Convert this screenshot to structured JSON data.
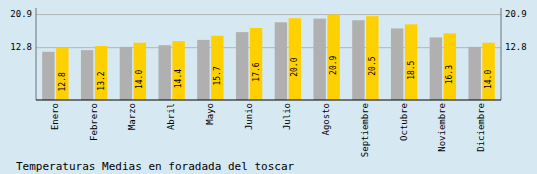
{
  "chart_data": {
    "type": "bar",
    "title": "Temperaturas Medias en foradada del toscar",
    "categories": [
      "Enero",
      "Febrero",
      "Marzo",
      "Abril",
      "Mayo",
      "Junio",
      "Julio",
      "Agosto",
      "Septiembre",
      "Octubre",
      "Noviembre",
      "Diciembre"
    ],
    "series": [
      {
        "color": "#B0B0B0",
        "values": [
          11.8,
          12.2,
          13.0,
          13.4,
          14.7,
          16.6,
          19.0,
          19.9,
          19.5,
          17.5,
          15.3,
          13.0
        ]
      },
      {
        "color": "#FFD000",
        "values": [
          12.8,
          13.2,
          14.0,
          14.4,
          15.7,
          17.6,
          20.0,
          20.9,
          20.5,
          18.5,
          16.3,
          14.0
        ],
        "value_labels": [
          "12.8",
          "13.2",
          "14.0",
          "14.4",
          "15.7",
          "17.6",
          "20.0",
          "20.9",
          "20.5",
          "18.5",
          "16.3",
          "14.0"
        ],
        "data_labels": true
      }
    ],
    "ylim": [
      0,
      22.5
    ],
    "yticks": [
      12.8,
      20.9
    ],
    "y2lim": [
      0,
      22.5
    ],
    "y2ticks": [
      12.8,
      20.9
    ],
    "grid": true
  }
}
